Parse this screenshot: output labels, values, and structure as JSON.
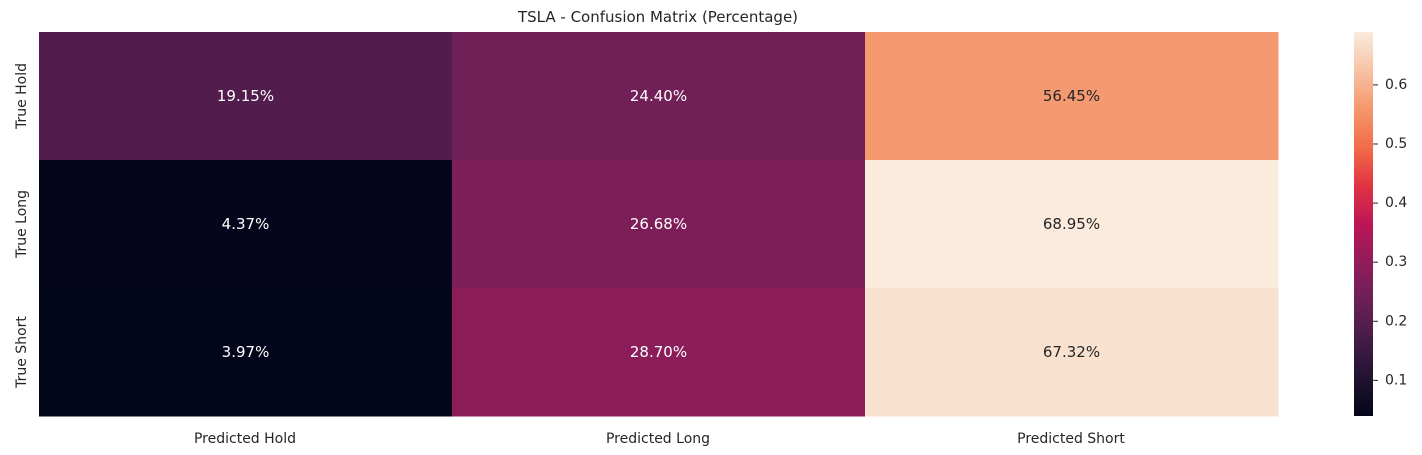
{
  "chart_data": {
    "type": "heatmap",
    "title": "TSLA - Confusion Matrix (Percentage)",
    "xlabel": "",
    "ylabel": "",
    "x_categories": [
      "Predicted Hold",
      "Predicted Long",
      "Predicted Short"
    ],
    "y_categories": [
      "True Hold",
      "True Long",
      "True Short"
    ],
    "values": [
      [
        0.1915,
        0.244,
        0.5645
      ],
      [
        0.0437,
        0.2668,
        0.6895
      ],
      [
        0.0397,
        0.287,
        0.6732
      ]
    ],
    "annotations": [
      [
        "19.15%",
        "24.40%",
        "56.45%"
      ],
      [
        "4.37%",
        "26.68%",
        "68.95%"
      ],
      [
        "3.97%",
        "28.70%",
        "67.32%"
      ]
    ],
    "colormap": "rocket",
    "colorbar": {
      "range": [
        0.0397,
        0.6895
      ],
      "ticks": [
        0.1,
        0.2,
        0.3,
        0.4,
        0.5,
        0.6
      ],
      "tick_labels": [
        "0.1",
        "0.2",
        "0.3",
        "0.4",
        "0.5",
        "0.6"
      ]
    },
    "grid": false
  }
}
